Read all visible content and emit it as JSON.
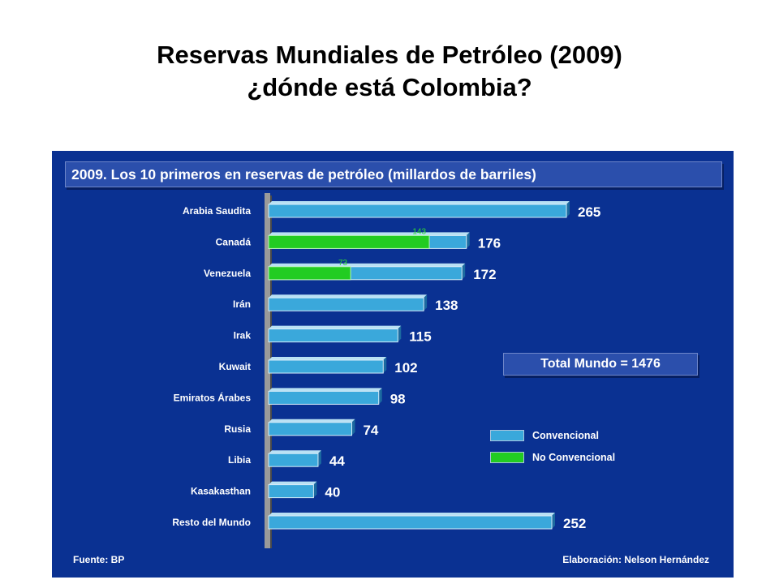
{
  "slide": {
    "title_line1": "Reservas Mundiales de Petróleo (2009)",
    "title_line2": "¿dónde está Colombia?"
  },
  "panel": {
    "background_color": "#0a3192",
    "source": "Fuente: BP",
    "credit": "Elaboración: Nelson Hernández",
    "total_label": "Total Mundo = 1476"
  },
  "legend": [
    {
      "label": "Convencional",
      "color": "#3aa8db"
    },
    {
      "label": "No Convencional",
      "color": "#22cc22"
    }
  ],
  "chart_data": {
    "type": "bar",
    "orientation": "horizontal",
    "title": "2009. Los 10 primeros en reservas de petróleo (millardos de barriles)",
    "categories": [
      "Arabia Saudita",
      "Canadá",
      "Venezuela",
      "Irán",
      "Irak",
      "Kuwait",
      "Emiratos Árabes",
      "Rusia",
      "Libia",
      "Kasakasthan",
      "Resto del Mundo"
    ],
    "totals": [
      265,
      176,
      172,
      138,
      115,
      102,
      98,
      74,
      44,
      40,
      252
    ],
    "series": [
      {
        "name": "No Convencional",
        "color": "#22cc22",
        "values": [
          0,
          143,
          73,
          0,
          0,
          0,
          0,
          0,
          0,
          0,
          0
        ]
      },
      {
        "name": "Convencional",
        "color": "#3aa8db",
        "values": [
          265,
          33,
          99,
          138,
          115,
          102,
          98,
          74,
          44,
          40,
          252
        ]
      }
    ],
    "data_labels": [
      "265",
      "176",
      "172",
      "138",
      "115",
      "102",
      "98",
      "74",
      "44",
      "40",
      "252"
    ],
    "inner_labels": [
      "",
      "143",
      "73",
      "",
      "",
      "",
      "",
      "",
      "",
      "",
      ""
    ],
    "xlim": [
      0,
      265
    ],
    "grid": false
  }
}
